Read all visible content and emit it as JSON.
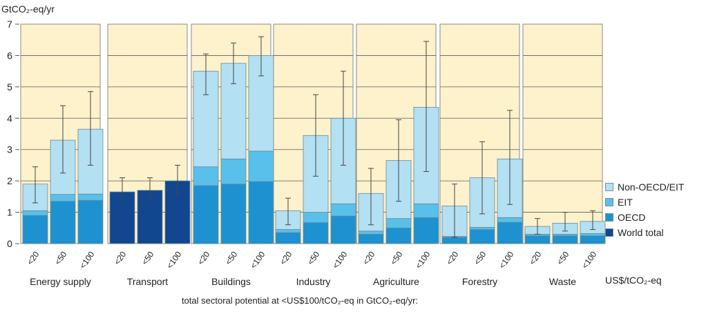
{
  "chart_data": {
    "type": "bar",
    "ylabel": "GtCO₂-eq/yr",
    "ylim": [
      0,
      7
    ],
    "yticks": [
      0,
      1,
      2,
      3,
      4,
      5,
      6,
      7
    ],
    "grid": true,
    "x_unit_label": "US$/tCO₂-eq",
    "footer": "total sectoral potential at <US$100/tCO₂-eq in GtCO₂-eq/yr:",
    "legend_position": "right",
    "legend": [
      {
        "key": "nonoecd",
        "label": "Non-OECD/EIT",
        "color": "#b3e0f2"
      },
      {
        "key": "eit",
        "label": "EIT",
        "color": "#58c0ea"
      },
      {
        "key": "oecd",
        "label": "OECD",
        "color": "#1e92d0"
      },
      {
        "key": "world",
        "label": "World total",
        "color": "#12478f"
      }
    ],
    "panel_background": "#fdf2cc",
    "categories": [
      "<20",
      "<50",
      "<100"
    ],
    "sectors": [
      {
        "name": "Energy supply",
        "oecd": [
          0.9,
          1.35,
          1.38
        ],
        "eit": [
          0.15,
          0.22,
          0.2
        ],
        "nonoecd": [
          0.85,
          1.73,
          2.07
        ],
        "world": null,
        "err_low": [
          1.3,
          2.25,
          2.5
        ],
        "err_high": [
          2.45,
          4.4,
          4.85
        ]
      },
      {
        "name": "Transport",
        "oecd": null,
        "eit": null,
        "nonoecd": null,
        "world": [
          1.65,
          1.7,
          2.0
        ],
        "err_low": [
          1.4,
          1.45,
          1.55
        ],
        "err_high": [
          2.1,
          2.1,
          2.5
        ]
      },
      {
        "name": "Buildings",
        "oecd": [
          1.85,
          1.9,
          1.98
        ],
        "eit": [
          0.6,
          0.8,
          0.97
        ],
        "nonoecd": [
          3.05,
          3.05,
          3.05
        ],
        "world": null,
        "err_low": [
          4.75,
          5.1,
          5.35
        ],
        "err_high": [
          6.05,
          6.4,
          6.6
        ]
      },
      {
        "name": "Industry",
        "oecd": [
          0.35,
          0.67,
          0.88
        ],
        "eit": [
          0.1,
          0.33,
          0.39
        ],
        "nonoecd": [
          0.6,
          2.45,
          2.73
        ],
        "world": null,
        "err_low": [
          0.6,
          2.15,
          2.5
        ],
        "err_high": [
          1.45,
          4.75,
          5.5
        ]
      },
      {
        "name": "Agriculture",
        "oecd": [
          0.3,
          0.5,
          0.83
        ],
        "eit": [
          0.1,
          0.3,
          0.44
        ],
        "nonoecd": [
          1.2,
          1.85,
          3.08
        ],
        "world": null,
        "err_low": [
          0.6,
          1.35,
          2.3
        ],
        "err_high": [
          2.4,
          3.95,
          6.45
        ]
      },
      {
        "name": "Forestry",
        "oecd": [
          0.2,
          0.45,
          0.68
        ],
        "eit": [
          0.03,
          0.07,
          0.15
        ],
        "nonoecd": [
          0.97,
          1.58,
          1.87
        ],
        "world": null,
        "err_low": [
          0.2,
          0.95,
          1.25
        ],
        "err_high": [
          1.9,
          3.25,
          4.25
        ]
      },
      {
        "name": "Waste",
        "oecd": [
          0.25,
          0.25,
          0.25
        ],
        "eit": [
          0.05,
          0.05,
          0.07
        ],
        "nonoecd": [
          0.25,
          0.35,
          0.39
        ],
        "world": null,
        "err_low": [
          0.3,
          0.4,
          0.45
        ],
        "err_high": [
          0.8,
          1.0,
          1.05
        ]
      }
    ]
  }
}
